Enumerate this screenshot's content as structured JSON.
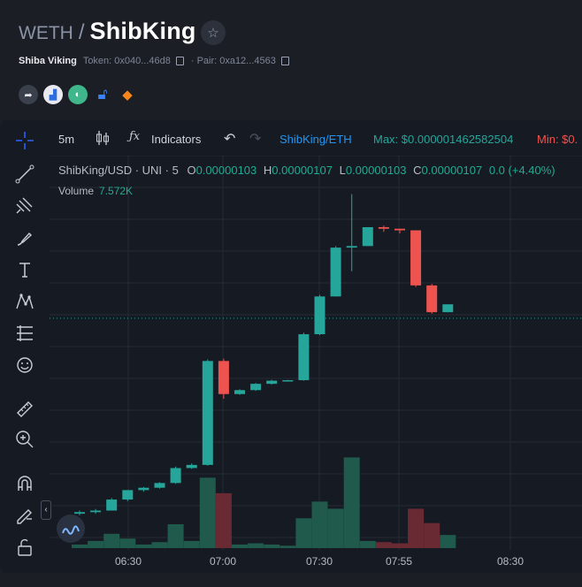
{
  "header": {
    "base_token": "WETH",
    "slash": "/",
    "token_name": "ShibKing",
    "project_name": "Shiba Viking",
    "token_label": "Token:",
    "token_address": "0x040...46d8",
    "pair_label": "· Pair:",
    "pair_address": "0xa12...4563"
  },
  "toolbar": {
    "interval": "5m",
    "indicators_label": "Indicators",
    "symbol": "ShibKing/ETH",
    "max_text": "Max: $0.000001462582504",
    "min_text": "Min: $0.",
    "max_color": "#26a69a",
    "min_color": "#ef5350"
  },
  "legend": {
    "symbol": "ShibKing/USD · UNI · 5",
    "o_label": "O",
    "o_value": "0.00000103",
    "h_label": "H",
    "h_value": "0.00000107",
    "l_label": "L",
    "l_value": "0.00000103",
    "c_label": "C",
    "c_value": "0.00000107",
    "change": "0.0 (+4.40%)",
    "volume_label": "Volume",
    "volume_value": "7.572K"
  },
  "colors": {
    "up": "#26a69a",
    "down": "#ef5350",
    "up_volume": "#1f5a4c",
    "down_volume": "#6a2a33"
  },
  "icons": [
    "share-icon",
    "chart-icon",
    "ape-icon",
    "lock-icon",
    "metamask-icon"
  ],
  "chart_data": {
    "type": "candlestick",
    "x": [
      "06:30",
      "07:00",
      "07:30",
      "07:55",
      "08:30"
    ],
    "candles": [
      {
        "o": 0.4,
        "h": 0.402,
        "l": 0.399,
        "c": 0.401,
        "v": 0.3,
        "dir": "up"
      },
      {
        "o": 0.401,
        "h": 0.403,
        "l": 0.4,
        "c": 0.402,
        "v": 0.6,
        "dir": "up"
      },
      {
        "o": 0.402,
        "h": 0.41,
        "l": 0.402,
        "c": 0.409,
        "v": 1.2,
        "dir": "up"
      },
      {
        "o": 0.409,
        "h": 0.415,
        "l": 0.408,
        "c": 0.415,
        "v": 0.8,
        "dir": "up"
      },
      {
        "o": 0.415,
        "h": 0.417,
        "l": 0.414,
        "c": 0.4165,
        "v": 0.3,
        "dir": "up"
      },
      {
        "o": 0.4165,
        "h": 0.42,
        "l": 0.416,
        "c": 0.4195,
        "v": 0.5,
        "dir": "up"
      },
      {
        "o": 0.4195,
        "h": 0.43,
        "l": 0.419,
        "c": 0.429,
        "v": 2.0,
        "dir": "up"
      },
      {
        "o": 0.429,
        "h": 0.432,
        "l": 0.4285,
        "c": 0.431,
        "v": 0.6,
        "dir": "up"
      },
      {
        "o": 0.431,
        "h": 0.498,
        "l": 0.4305,
        "c": 0.497,
        "v": 5.9,
        "dir": "up"
      },
      {
        "o": 0.497,
        "h": 0.4985,
        "l": 0.473,
        "c": 0.476,
        "v": 4.6,
        "dir": "down"
      },
      {
        "o": 0.476,
        "h": 0.479,
        "l": 0.4755,
        "c": 0.4785,
        "v": 0.3,
        "dir": "up"
      },
      {
        "o": 0.4785,
        "h": 0.483,
        "l": 0.478,
        "c": 0.4825,
        "v": 0.4,
        "dir": "up"
      },
      {
        "o": 0.4825,
        "h": 0.485,
        "l": 0.482,
        "c": 0.4845,
        "v": 0.3,
        "dir": "up"
      },
      {
        "o": 0.4845,
        "h": 0.485,
        "l": 0.484,
        "c": 0.4848,
        "v": 0.2,
        "dir": "up"
      },
      {
        "o": 0.4848,
        "h": 0.515,
        "l": 0.4845,
        "c": 0.514,
        "v": 2.5,
        "dir": "up"
      },
      {
        "o": 0.514,
        "h": 0.539,
        "l": 0.5135,
        "c": 0.538,
        "v": 3.9,
        "dir": "up"
      },
      {
        "o": 0.538,
        "h": 0.57,
        "l": 0.538,
        "c": 0.569,
        "v": 3.3,
        "dir": "up"
      },
      {
        "o": 0.569,
        "h": 0.603,
        "l": 0.554,
        "c": 0.57,
        "v": 7.6,
        "dir": "up"
      },
      {
        "o": 0.57,
        "h": 0.582,
        "l": 0.57,
        "c": 0.582,
        "v": 0.6,
        "dir": "up"
      },
      {
        "o": 0.582,
        "h": 0.583,
        "l": 0.579,
        "c": 0.581,
        "v": 0.5,
        "dir": "down"
      },
      {
        "o": 0.581,
        "h": 0.581,
        "l": 0.578,
        "c": 0.58,
        "v": 0.4,
        "dir": "down"
      },
      {
        "o": 0.58,
        "h": 0.58,
        "l": 0.544,
        "c": 0.545,
        "v": 3.3,
        "dir": "down"
      },
      {
        "o": 0.545,
        "h": 0.546,
        "l": 0.527,
        "c": 0.528,
        "v": 2.1,
        "dir": "down"
      },
      {
        "o": 0.528,
        "h": 0.533,
        "l": 0.528,
        "c": 0.533,
        "v": 1.1,
        "dir": "up"
      }
    ]
  }
}
